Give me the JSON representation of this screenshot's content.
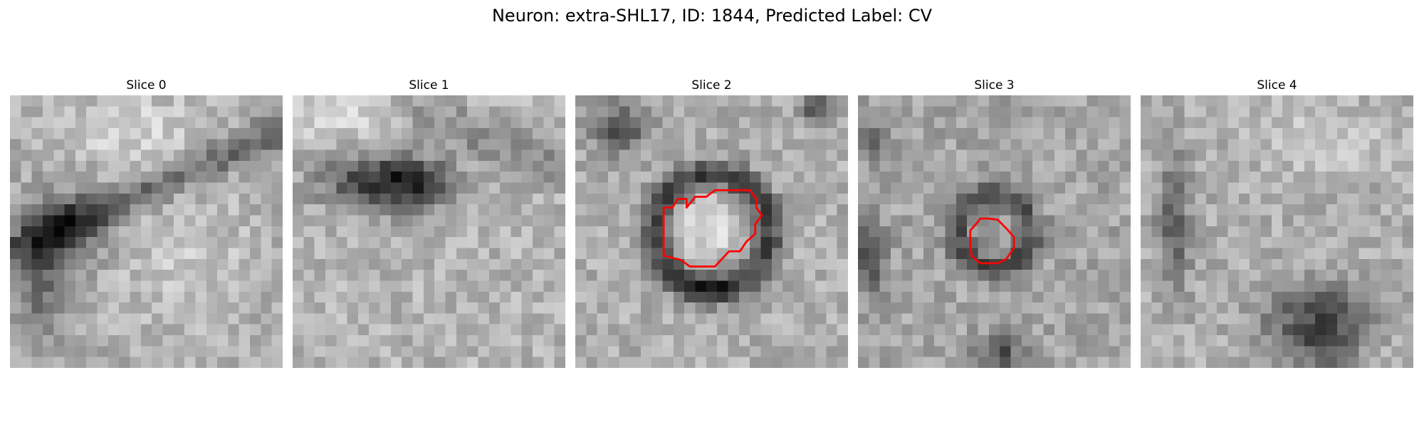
{
  "figure": {
    "title": "Neuron: extra-SHL17, ID: 1844, Predicted Label: CV"
  },
  "panels": [
    {
      "title": "Slice 0",
      "contour": false
    },
    {
      "title": "Slice 1",
      "contour": false
    },
    {
      "title": "Slice 2",
      "contour": true
    },
    {
      "title": "Slice 3",
      "contour": true
    },
    {
      "title": "Slice 4",
      "contour": false
    }
  ],
  "colors": {
    "contour": "#ff0000",
    "colormap": "gray"
  }
}
